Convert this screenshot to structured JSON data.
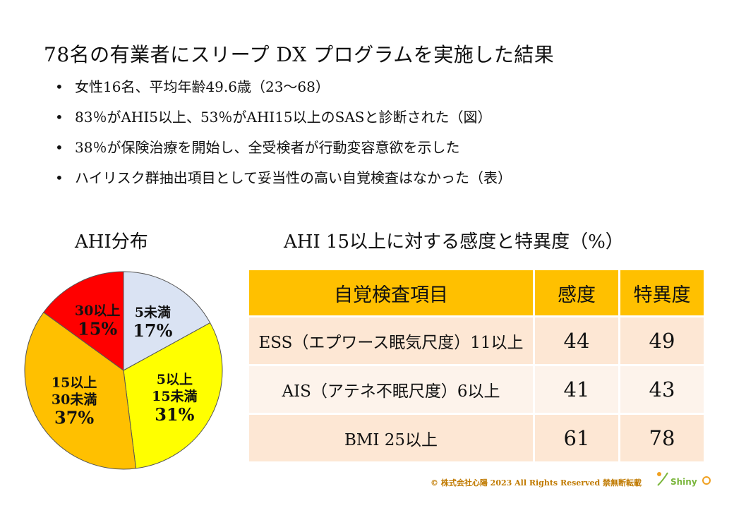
{
  "title": "78名の有業者にスリープ DX プログラムを実施した結果",
  "bullets": [
    "女性16名、平均年齢49.6歳（23〜68）",
    "83％がAHI5以上、53％がAHI15以上のSASと診断された（図）",
    "38％が保険治療を開始し、全受検者が行動変容意欲を示した",
    "ハイリスク群抽出項目として妥当性の高い自覚検査はなかった（表）"
  ],
  "pie_title": "AHI分布",
  "table_title": "AHI 15以上に対する感度と特異度（%）",
  "chart_data": [
    {
      "type": "pie",
      "title": "AHI分布",
      "slices": [
        {
          "label": "5未満",
          "value": 17,
          "value_label": "17%",
          "color": "#dae3f3"
        },
        {
          "label": "5以上\n15未満",
          "value": 31,
          "value_label": "31%",
          "color": "#ffff00"
        },
        {
          "label": "15以上\n30未満",
          "value": 37,
          "value_label": "37%",
          "color": "#ffc000"
        },
        {
          "label": "30以上",
          "value": 15,
          "value_label": "15%",
          "color": "#ff0000"
        }
      ]
    },
    {
      "type": "table",
      "title": "AHI 15以上に対する感度と特異度（%）",
      "columns": [
        "自覚検査項目",
        "感度",
        "特異度"
      ],
      "rows": [
        [
          "ESS（エプワース眠気尺度）11以上",
          "44",
          "49"
        ],
        [
          "AIS（アテネ不眠尺度）6以上",
          "41",
          "43"
        ],
        [
          "BMI 25以上",
          "61",
          "78"
        ]
      ]
    }
  ],
  "footer": "© 株式会社心陽 2023 All Rights Reserved 禁無断転載",
  "logo_text": "Shiny"
}
